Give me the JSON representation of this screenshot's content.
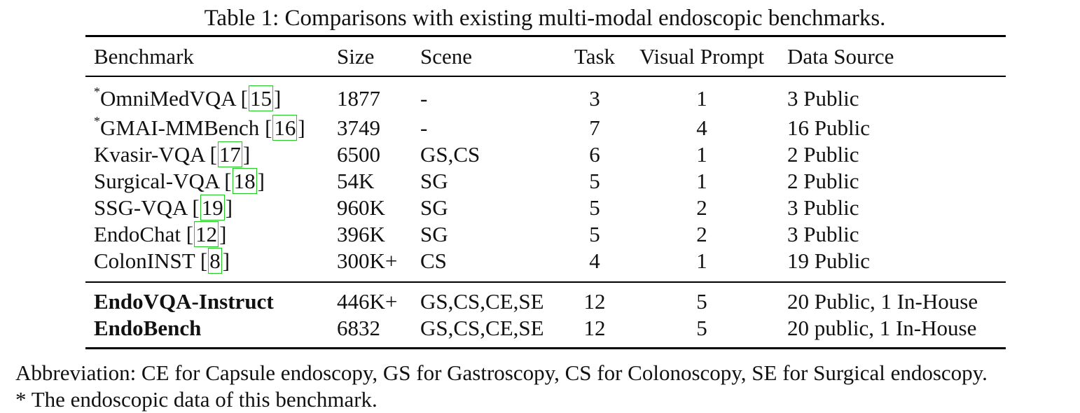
{
  "caption": "Table 1: Comparisons with existing multi-modal endoscopic benchmarks.",
  "headers": {
    "benchmark": "Benchmark",
    "size": "Size",
    "scene": "Scene",
    "task": "Task",
    "visual_prompt": "Visual Prompt",
    "data_source": "Data Source"
  },
  "rows": [
    {
      "star": "*",
      "name": "OmniMedVQA",
      "ref": "15",
      "size": "1877",
      "scene": "-",
      "task": "3",
      "vp": "1",
      "source": "3 Public"
    },
    {
      "star": "*",
      "name": "GMAI-MMBench",
      "ref": "16",
      "size": "3749",
      "scene": "-",
      "task": "7",
      "vp": "4",
      "source": "16 Public"
    },
    {
      "star": "",
      "name": "Kvasir-VQA",
      "ref": "17",
      "size": "6500",
      "scene": "GS,CS",
      "task": "6",
      "vp": "1",
      "source": "2 Public"
    },
    {
      "star": "",
      "name": "Surgical-VQA",
      "ref": "18",
      "size": "54K",
      "scene": "SG",
      "task": "5",
      "vp": "1",
      "source": "2 Public"
    },
    {
      "star": "",
      "name": "SSG-VQA",
      "ref": "19",
      "size": "960K",
      "scene": "SG",
      "task": "5",
      "vp": "2",
      "source": "3 Public"
    },
    {
      "star": "",
      "name": "EndoChat",
      "ref": "12",
      "size": "396K",
      "scene": "SG",
      "task": "5",
      "vp": "2",
      "source": "3 Public"
    },
    {
      "star": "",
      "name": "ColonINST",
      "ref": "8",
      "size": "300K+",
      "scene": "CS",
      "task": "4",
      "vp": "1",
      "source": "19 Public"
    }
  ],
  "ours": [
    {
      "name": "EndoVQA-Instruct",
      "size": "446K+",
      "scene": "GS,CS,CE,SE",
      "task": "12",
      "vp": "5",
      "source": "20 Public, 1 In-House"
    },
    {
      "name": "EndoBench",
      "size": "6832",
      "scene": "GS,CS,CE,SE",
      "task": "12",
      "vp": "5",
      "source": "20 public, 1 In-House"
    }
  ],
  "footnotes": [
    "Abbreviation: CE for Capsule endoscopy, GS for Gastroscopy, CS for Colonoscopy, SE for Surgical endoscopy.",
    "* The endoscopic data of this benchmark."
  ]
}
